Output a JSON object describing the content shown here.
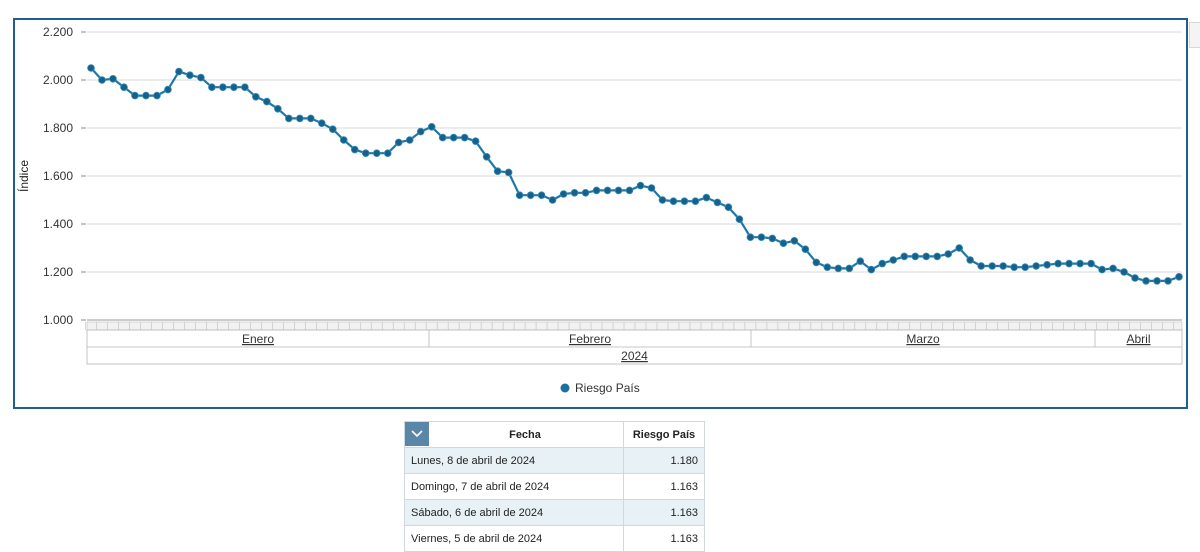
{
  "chart_data": {
    "type": "line",
    "ylabel": "Índice",
    "ylim": [
      1000,
      2200
    ],
    "yticks": [
      "1.000",
      "1.200",
      "1.400",
      "1.600",
      "1.800",
      "2.000",
      "2.200"
    ],
    "grid": true,
    "legend": "bottom-center",
    "year": "2024",
    "months": [
      "Enero",
      "Febrero",
      "Marzo",
      "Abril"
    ],
    "series": [
      {
        "name": "Riesgo País",
        "color": "#1f77a8",
        "values": [
          2050,
          2000,
          2005,
          1970,
          1935,
          1935,
          1935,
          1960,
          2035,
          2020,
          2010,
          1970,
          1970,
          1970,
          1970,
          1930,
          1910,
          1880,
          1840,
          1840,
          1840,
          1820,
          1795,
          1750,
          1710,
          1695,
          1695,
          1695,
          1740,
          1750,
          1785,
          1805,
          1760,
          1760,
          1760,
          1745,
          1680,
          1620,
          1615,
          1520,
          1520,
          1520,
          1500,
          1525,
          1530,
          1530,
          1540,
          1540,
          1540,
          1540,
          1560,
          1550,
          1500,
          1495,
          1495,
          1495,
          1510,
          1490,
          1470,
          1420,
          1345,
          1345,
          1340,
          1320,
          1330,
          1295,
          1240,
          1220,
          1215,
          1215,
          1245,
          1210,
          1235,
          1250,
          1265,
          1265,
          1265,
          1265,
          1275,
          1300,
          1250,
          1225,
          1225,
          1225,
          1220,
          1220,
          1225,
          1230,
          1235,
          1235,
          1235,
          1235,
          1210,
          1215,
          1200,
          1175,
          1163,
          1163,
          1163,
          1180
        ]
      }
    ]
  },
  "table": {
    "headers": [
      "Fecha",
      "Riesgo País"
    ],
    "rows": [
      {
        "fecha": "Lunes, 8 de abril de 2024",
        "valor": "1.180"
      },
      {
        "fecha": "Domingo, 7 de abril de 2024",
        "valor": "1.163"
      },
      {
        "fecha": "Sábado, 6 de abril de 2024",
        "valor": "1.163"
      },
      {
        "fecha": "Viernes, 5 de abril de 2024",
        "valor": "1.163"
      }
    ]
  }
}
